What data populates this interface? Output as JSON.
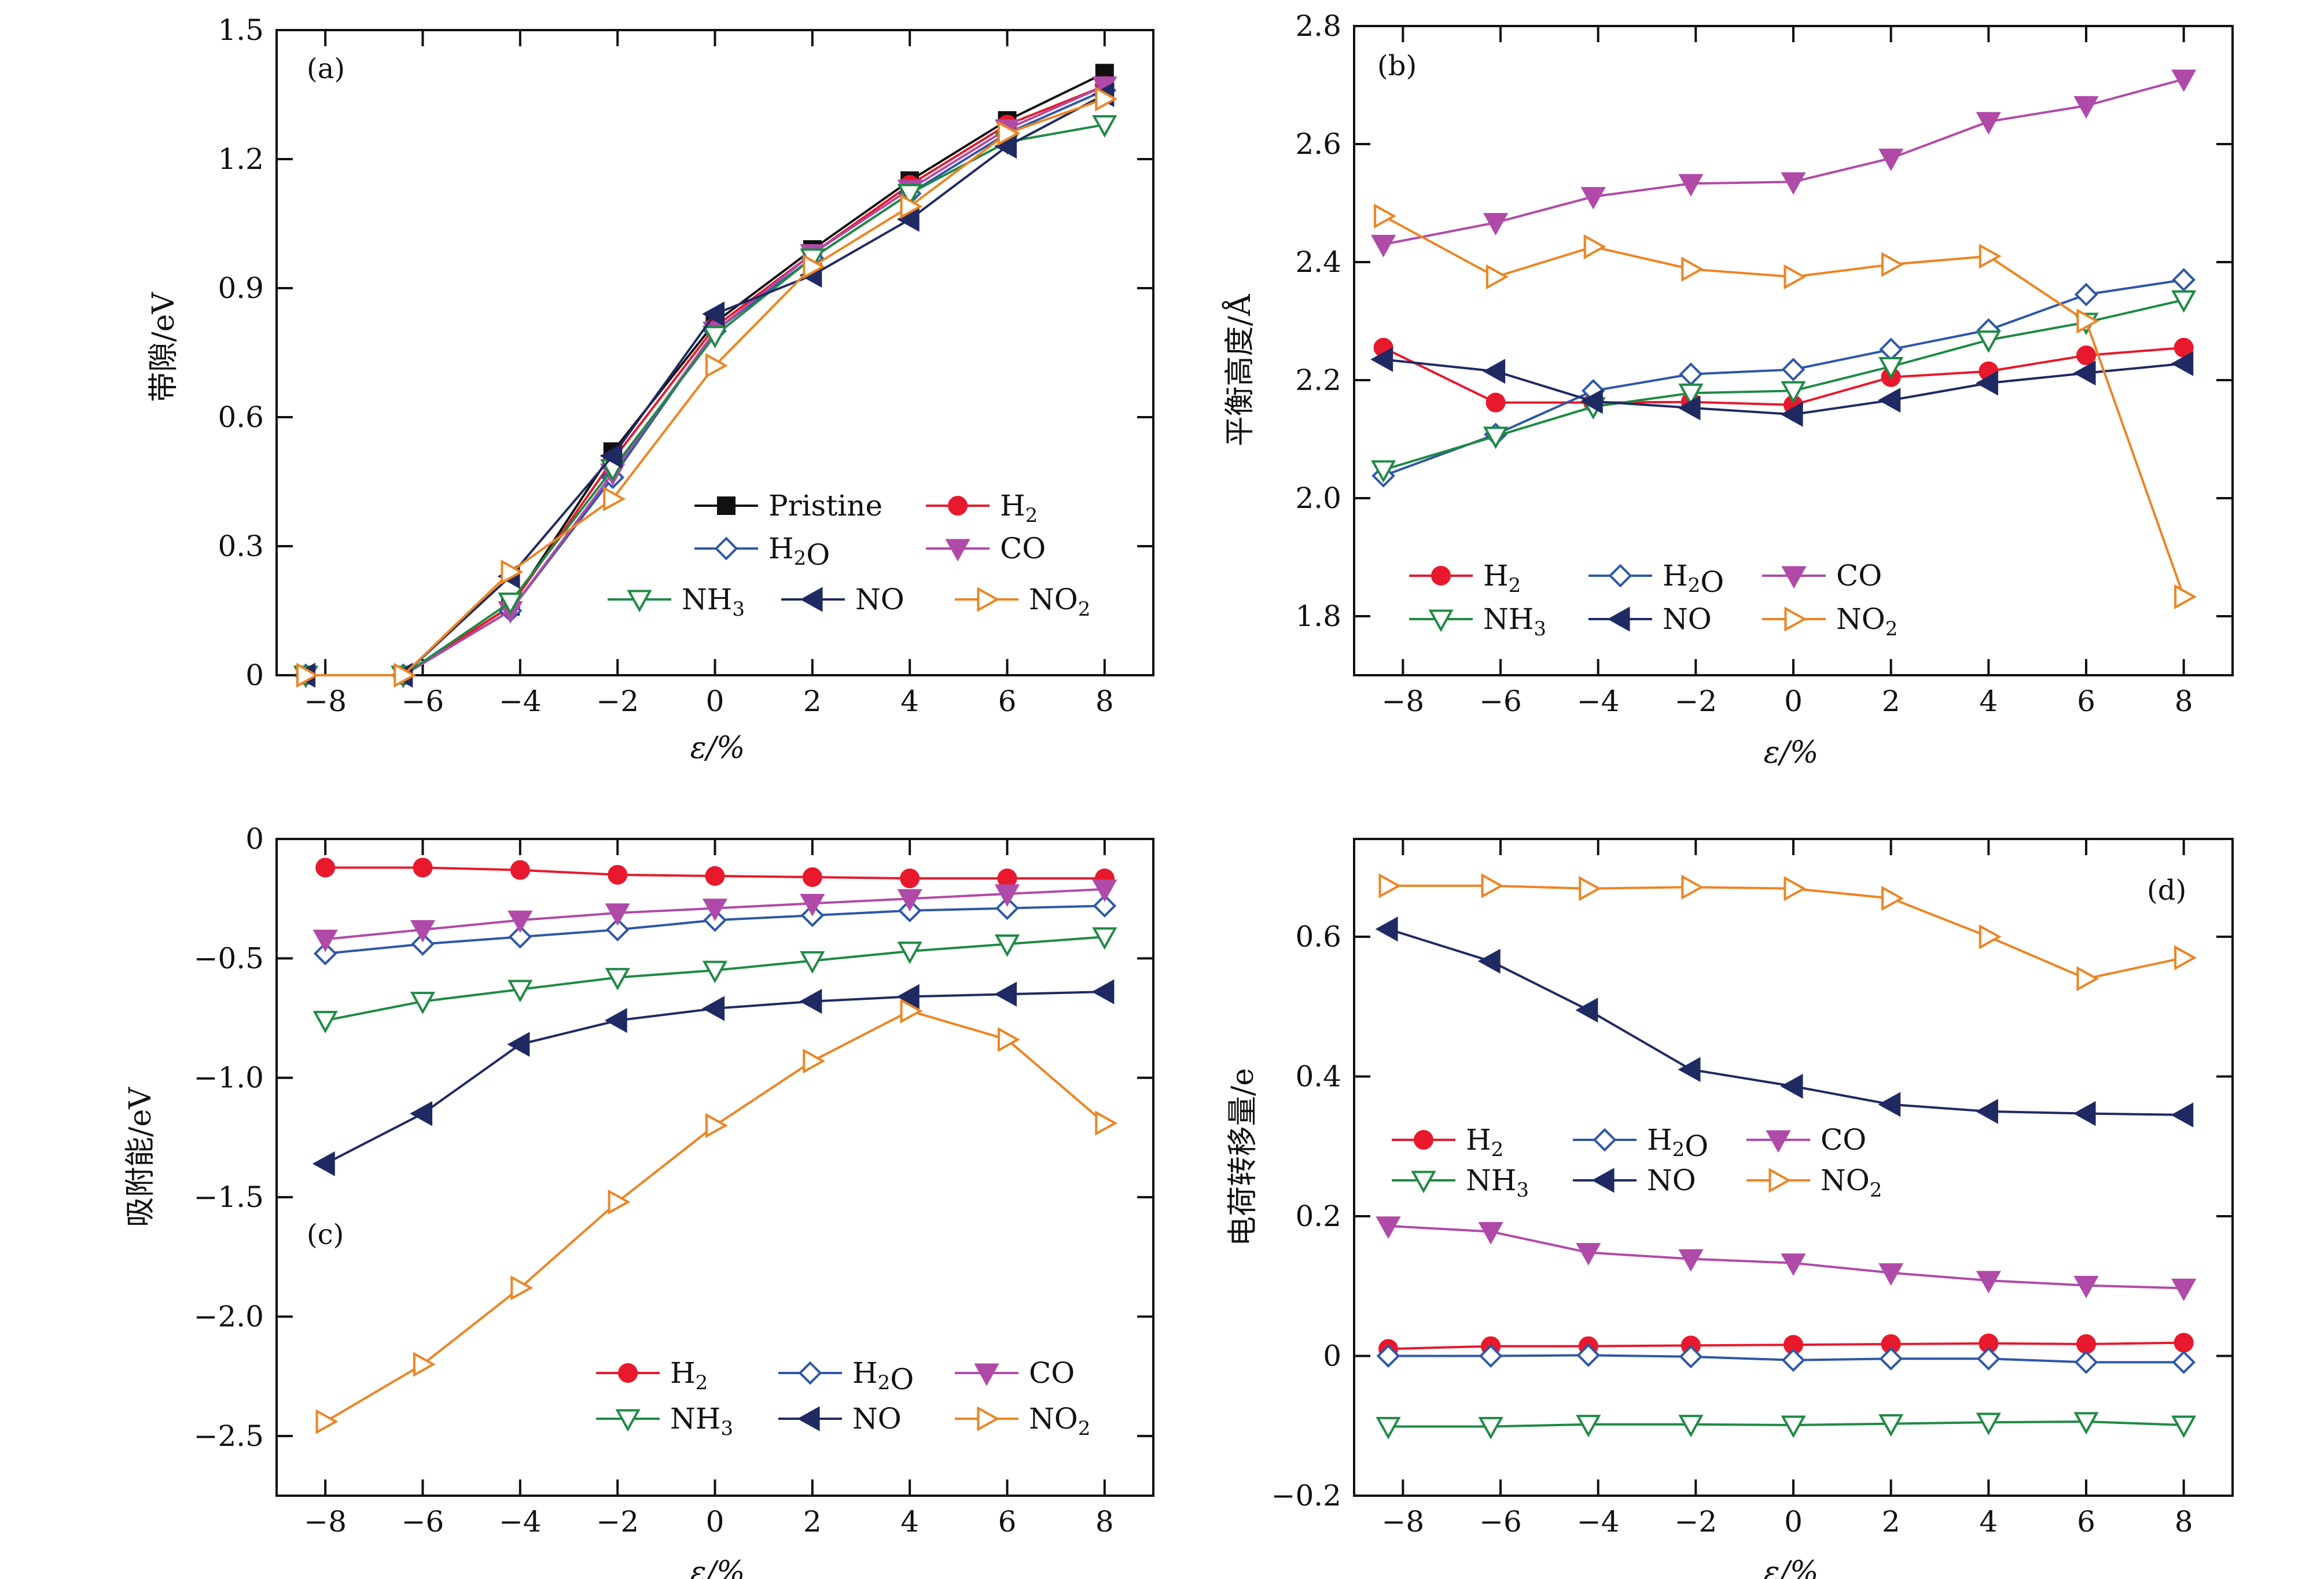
{
  "markers": {
    "Pristine": "square",
    "H2": "circle",
    "H2O": "diamond-open",
    "CO": "triangle-down",
    "NH3": "triangle-down-open",
    "NO": "triangle-left",
    "NO2": "triangle-right-open"
  },
  "colors": {
    "Pristine": "#111111",
    "H2": "#e8192c",
    "H2O": "#2d57a8",
    "CO": "#b04aa8",
    "NH3": "#1f8a44",
    "NO": "#1f2a63",
    "NO2": "#ee8422"
  },
  "chart_data": [
    {
      "type": "line",
      "panel_label": "(a)",
      "xlabel": "ε/%",
      "ylabel": "带隙/eV",
      "x": [
        -8.4,
        -6.4,
        -4.2,
        -2.1,
        0,
        2,
        4,
        6,
        8
      ],
      "xticks": [
        -8,
        -6,
        -4,
        -2,
        0,
        2,
        4,
        6,
        8
      ],
      "xlim": [
        -9,
        9
      ],
      "yticks": [
        0,
        0.3,
        0.6,
        0.9,
        1.2,
        1.5
      ],
      "ytick_labels": [
        "0",
        "0.3",
        "0.6",
        "0.9",
        "1.2",
        "1.5"
      ],
      "ylim": [
        0,
        1.5
      ],
      "legend": {
        "rows": [
          [
            "Pristine",
            "H2"
          ],
          [
            "H2O",
            "CO"
          ],
          [
            "NH3",
            "NO",
            "NO2"
          ]
        ]
      },
      "series": [
        {
          "name": "Pristine",
          "values": [
            0,
            0,
            0.16,
            0.52,
            0.82,
            0.99,
            1.15,
            1.29,
            1.4
          ]
        },
        {
          "name": "H2",
          "values": [
            0,
            0,
            0.16,
            0.5,
            0.81,
            0.98,
            1.14,
            1.28,
            1.37
          ]
        },
        {
          "name": "H2O",
          "values": [
            0,
            0,
            0.15,
            0.46,
            0.8,
            0.97,
            1.12,
            1.26,
            1.36
          ]
        },
        {
          "name": "CO",
          "values": [
            0,
            0,
            0.15,
            0.47,
            0.8,
            0.98,
            1.13,
            1.27,
            1.37
          ]
        },
        {
          "name": "NH3",
          "values": [
            0,
            0,
            0.17,
            0.48,
            0.79,
            0.97,
            1.12,
            1.24,
            1.28
          ]
        },
        {
          "name": "NO",
          "values": [
            0,
            0,
            0.23,
            0.51,
            0.84,
            0.93,
            1.06,
            1.23,
            1.35
          ]
        },
        {
          "name": "NO2",
          "values": [
            0,
            0,
            0.24,
            0.41,
            0.72,
            0.95,
            1.09,
            1.26,
            1.34
          ]
        }
      ]
    },
    {
      "type": "line",
      "panel_label": "(b)",
      "xlabel": "ε/%",
      "ylabel": "平衡高度/Å",
      "x": [
        -8.4,
        -6.1,
        -4.1,
        -2.1,
        0,
        2,
        4,
        6,
        8
      ],
      "xticks": [
        -8,
        -6,
        -4,
        -2,
        0,
        2,
        4,
        6,
        8
      ],
      "xlim": [
        -9,
        9
      ],
      "yticks": [
        1.8,
        2.0,
        2.2,
        2.4,
        2.6,
        2.8
      ],
      "ytick_labels": [
        "1.8",
        "2.0",
        "2.2",
        "2.4",
        "2.6",
        "2.8"
      ],
      "ylim": [
        1.7,
        2.8
      ],
      "legend": {
        "rows": [
          [
            "H2",
            "H2O",
            "CO"
          ],
          [
            "NH3",
            "NO",
            "NO2"
          ]
        ]
      },
      "series": [
        {
          "name": "H2",
          "values": [
            2.255,
            2.162,
            2.162,
            2.163,
            2.158,
            2.205,
            2.215,
            2.242,
            2.255
          ]
        },
        {
          "name": "H2O",
          "values": [
            2.038,
            2.108,
            2.182,
            2.21,
            2.218,
            2.252,
            2.285,
            2.345,
            2.37
          ]
        },
        {
          "name": "CO",
          "values": [
            2.43,
            2.467,
            2.511,
            2.533,
            2.536,
            2.576,
            2.638,
            2.665,
            2.71
          ]
        },
        {
          "name": "NH3",
          "values": [
            2.048,
            2.105,
            2.155,
            2.178,
            2.182,
            2.223,
            2.268,
            2.298,
            2.336
          ]
        },
        {
          "name": "NO",
          "values": [
            2.235,
            2.215,
            2.164,
            2.153,
            2.142,
            2.166,
            2.195,
            2.212,
            2.228
          ]
        },
        {
          "name": "NO2",
          "values": [
            2.478,
            2.375,
            2.426,
            2.388,
            2.375,
            2.396,
            2.41,
            2.3,
            1.833
          ]
        }
      ]
    },
    {
      "type": "line",
      "panel_label": "(c)",
      "xlabel": "ε/%",
      "ylabel": "吸附能/eV",
      "x": [
        -8,
        -6,
        -4,
        -2,
        0,
        2,
        4,
        6,
        8
      ],
      "xticks": [
        -8,
        -6,
        -4,
        -2,
        0,
        2,
        4,
        6,
        8
      ],
      "xlim": [
        -9,
        9
      ],
      "yticks": [
        -2.5,
        -2.0,
        -1.5,
        -1.0,
        -0.5,
        0
      ],
      "ytick_labels": [
        "−2.5",
        "−2.0",
        "−1.5",
        "−1.0",
        "−0.5",
        "0"
      ],
      "ylim": [
        -2.75,
        0
      ],
      "legend": {
        "rows": [
          [
            "H2",
            "H2O",
            "CO"
          ],
          [
            "NH3",
            "NO",
            "NO2"
          ]
        ]
      },
      "series": [
        {
          "name": "H2",
          "values": [
            -0.12,
            -0.12,
            -0.13,
            -0.15,
            -0.155,
            -0.16,
            -0.165,
            -0.165,
            -0.165
          ]
        },
        {
          "name": "H2O",
          "values": [
            -0.48,
            -0.44,
            -0.41,
            -0.38,
            -0.34,
            -0.32,
            -0.3,
            -0.29,
            -0.28
          ]
        },
        {
          "name": "CO",
          "values": [
            -0.42,
            -0.38,
            -0.34,
            -0.31,
            -0.29,
            -0.27,
            -0.25,
            -0.23,
            -0.21
          ]
        },
        {
          "name": "NH3",
          "values": [
            -0.76,
            -0.68,
            -0.63,
            -0.58,
            -0.55,
            -0.51,
            -0.47,
            -0.44,
            -0.41
          ]
        },
        {
          "name": "NO",
          "values": [
            -1.36,
            -1.15,
            -0.86,
            -0.76,
            -0.71,
            -0.68,
            -0.66,
            -0.65,
            -0.64
          ]
        },
        {
          "name": "NO2",
          "values": [
            -2.44,
            -2.2,
            -1.88,
            -1.52,
            -1.2,
            -0.93,
            -0.72,
            -0.84,
            -1.19
          ]
        }
      ]
    },
    {
      "type": "line",
      "panel_label": "(d)",
      "xlabel": "ε/%",
      "ylabel": "电荷转移量/e",
      "x": [
        -8.3,
        -6.2,
        -4.2,
        -2.1,
        0,
        2,
        4,
        6,
        8
      ],
      "xticks": [
        -8,
        -6,
        -4,
        -2,
        0,
        2,
        4,
        6,
        8
      ],
      "xlim": [
        -9,
        9
      ],
      "yticks": [
        -0.2,
        0,
        0.2,
        0.4,
        0.6
      ],
      "ytick_labels": [
        "−0.2",
        "0",
        "0.2",
        "0.4",
        "0.6"
      ],
      "ylim": [
        -0.2,
        0.74
      ],
      "legend": {
        "rows": [
          [
            "H2",
            "H2O",
            "CO"
          ],
          [
            "NH3",
            "NO",
            "NO2"
          ]
        ]
      },
      "series": [
        {
          "name": "H2",
          "values": [
            0.01,
            0.014,
            0.014,
            0.015,
            0.016,
            0.017,
            0.018,
            0.017,
            0.019
          ]
        },
        {
          "name": "H2O",
          "values": [
            0.0,
            0.0,
            0.001,
            -0.001,
            -0.006,
            -0.004,
            -0.004,
            -0.009,
            -0.009
          ]
        },
        {
          "name": "CO",
          "values": [
            0.186,
            0.178,
            0.148,
            0.139,
            0.133,
            0.119,
            0.108,
            0.101,
            0.097
          ]
        },
        {
          "name": "NH3",
          "values": [
            -0.101,
            -0.101,
            -0.098,
            -0.098,
            -0.099,
            -0.097,
            -0.095,
            -0.094,
            -0.099
          ]
        },
        {
          "name": "NO",
          "values": [
            0.611,
            0.565,
            0.495,
            0.41,
            0.386,
            0.36,
            0.35,
            0.347,
            0.345
          ]
        },
        {
          "name": "NO2",
          "values": [
            0.673,
            0.673,
            0.669,
            0.671,
            0.669,
            0.655,
            0.6,
            0.54,
            0.57
          ]
        }
      ]
    }
  ]
}
